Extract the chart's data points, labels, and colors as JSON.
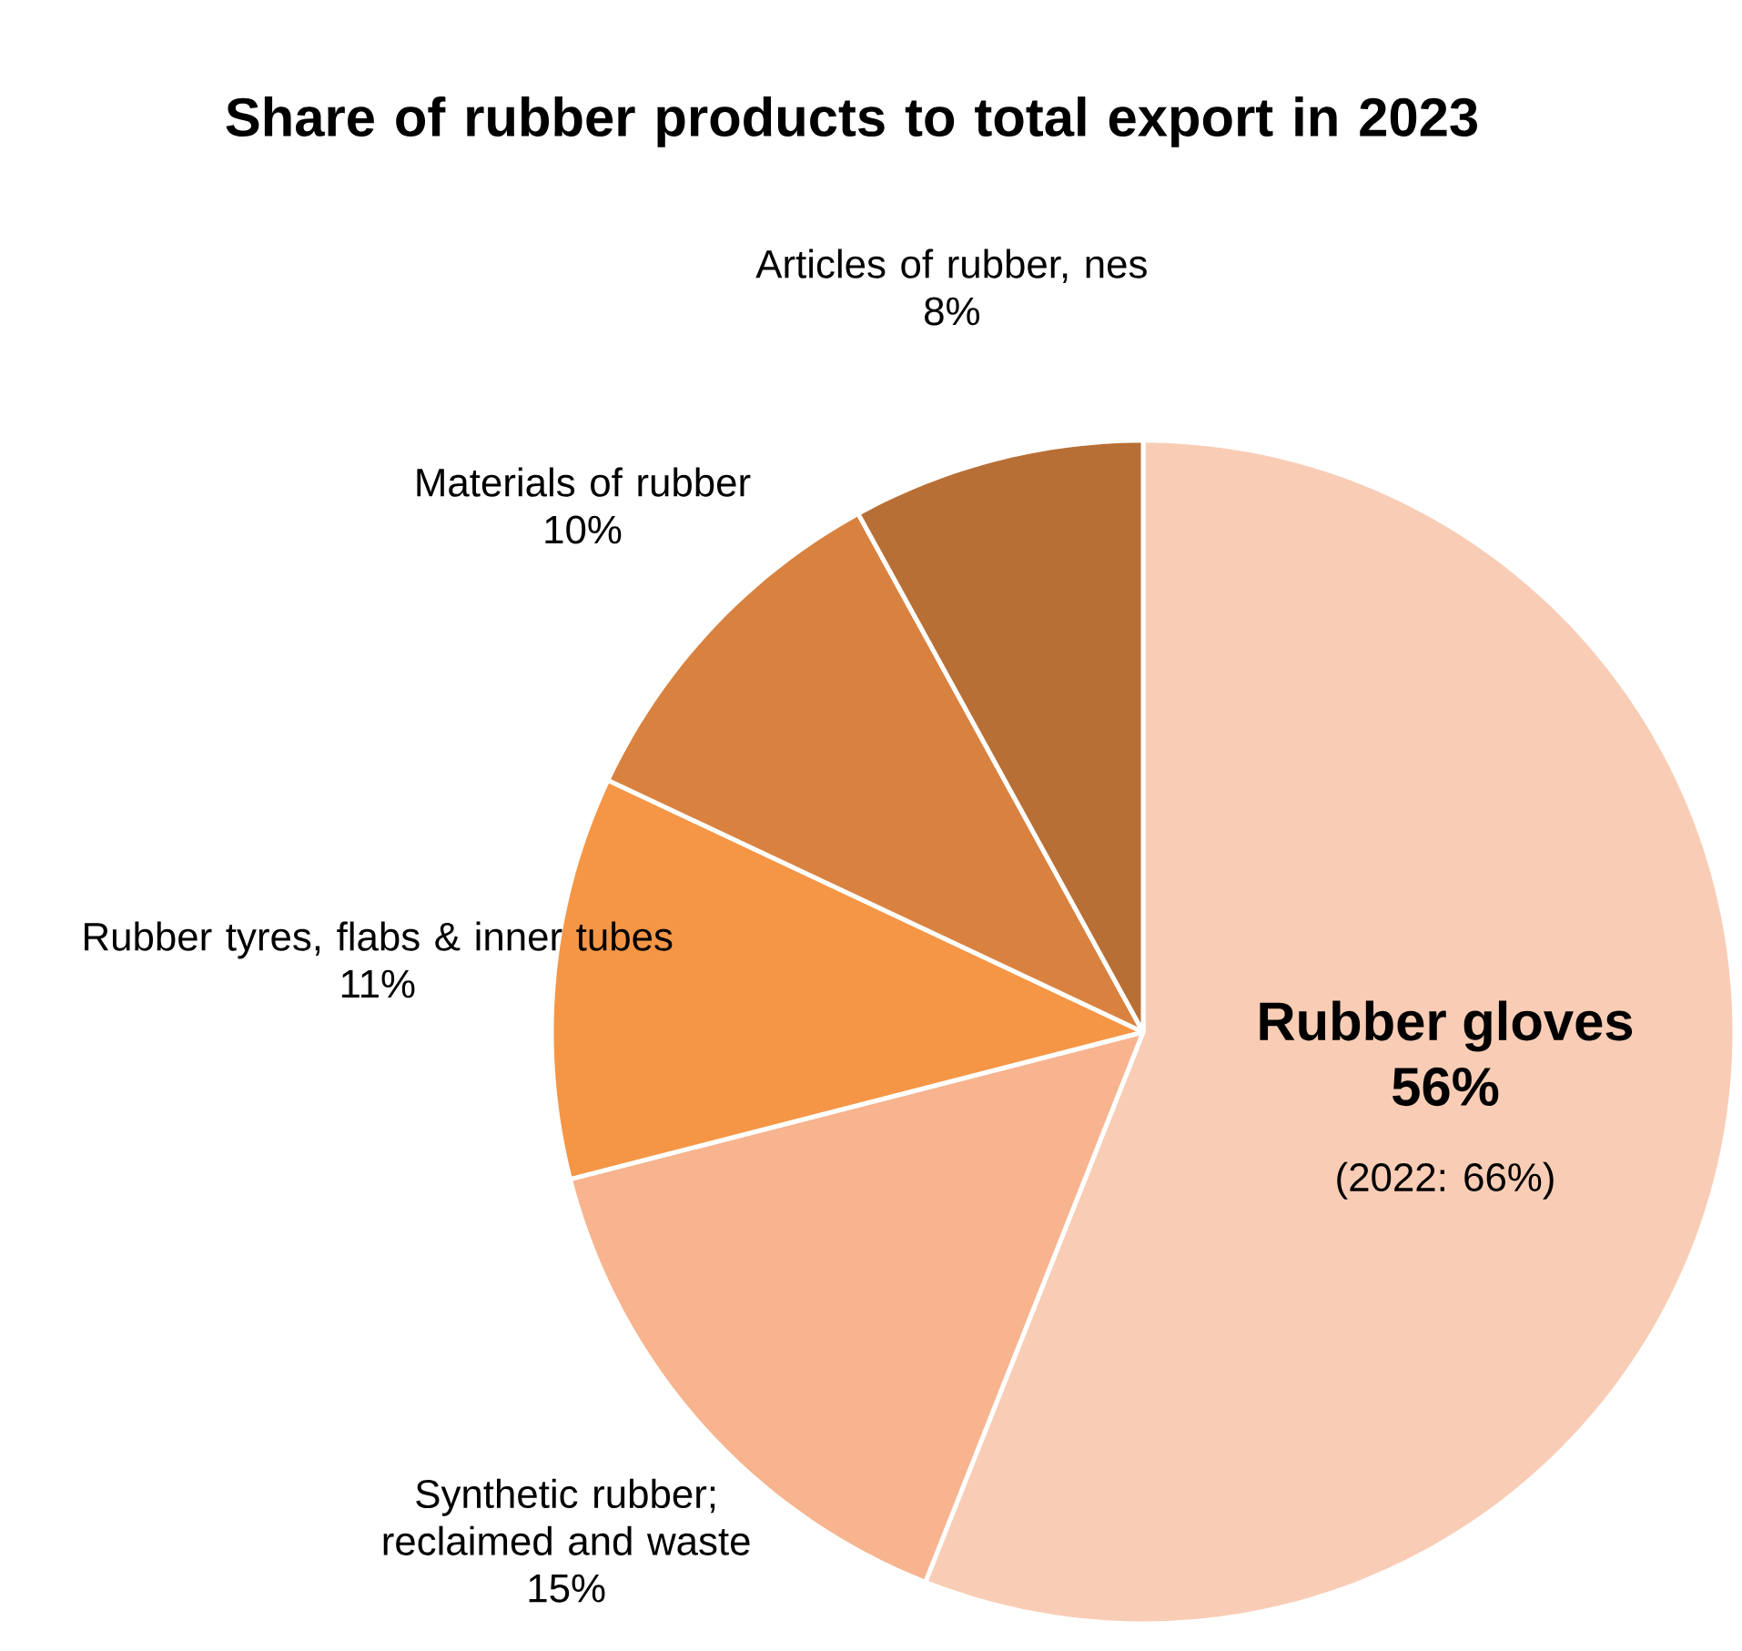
{
  "chart_data": {
    "type": "pie",
    "title": "Share of rubber products to total export in 2023",
    "categories": [
      "Rubber gloves",
      "Synthetic rubber; reclaimed and waste",
      "Rubber tyres, flabs & inner tubes",
      "Materials of rubber",
      "Articles of rubber, nes"
    ],
    "values": [
      56,
      15,
      11,
      10,
      8
    ],
    "colors": [
      "#f9cdb5",
      "#f7b48f",
      "#f59646",
      "#d98240",
      "#b86f35"
    ],
    "value_labels": [
      "56%",
      "15%",
      "11%",
      "10%",
      "8%"
    ],
    "annotations": [
      "(2022: 66%)"
    ]
  }
}
